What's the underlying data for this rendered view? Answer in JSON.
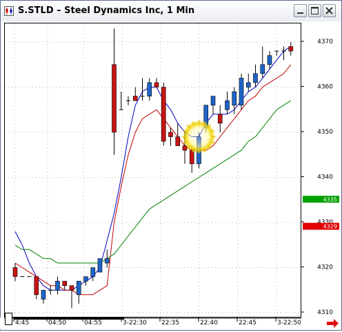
{
  "window": {
    "title": "S.STLD – Steel Dynamics Inc, 1 Min",
    "app_icon": "candlestick-app-icon",
    "controls": [
      "minimize-icon",
      "maximize-icon",
      "close-icon"
    ]
  },
  "chart_data": {
    "type": "candlestick",
    "title": "",
    "xlabel": "",
    "ylabel": "",
    "ylim": [
      4308,
      4373
    ],
    "y_ticks": [
      "4370",
      "4360",
      "4350",
      "4340",
      "4330",
      "4320",
      "4310"
    ],
    "x_ticks": [
      "4:45",
      "04:50",
      "04:55",
      "3-22:30",
      "22:35",
      "22:40",
      "22:45",
      "3-22:50"
    ],
    "price_tags": [
      {
        "label": "4335",
        "value": 4335,
        "color": "#00a000"
      },
      {
        "label": "4329",
        "value": 4329,
        "color": "#e00000"
      }
    ],
    "candles": [
      {
        "o": 4320,
        "h": 4321,
        "l": 4317,
        "c": 4318
      },
      {
        "o": 4318,
        "h": 4318,
        "l": 4318,
        "c": 4318
      },
      {
        "o": 4318,
        "h": 4318,
        "l": 4318,
        "c": 4318
      },
      {
        "o": 4318,
        "h": 4318,
        "l": 4313,
        "c": 4314
      },
      {
        "o": 4313,
        "h": 4315,
        "l": 4312,
        "c": 4315
      },
      {
        "o": 4315,
        "h": 4316,
        "l": 4314,
        "c": 4315
      },
      {
        "o": 4315,
        "h": 4318,
        "l": 4314,
        "c": 4317
      },
      {
        "o": 4317,
        "h": 4317,
        "l": 4315,
        "c": 4316
      },
      {
        "o": 4316,
        "h": 4316,
        "l": 4311,
        "c": 4315
      },
      {
        "o": 4314,
        "h": 4317,
        "l": 4312,
        "c": 4317
      },
      {
        "o": 4317,
        "h": 4318,
        "l": 4316,
        "c": 4318
      },
      {
        "o": 4318,
        "h": 4320,
        "l": 4317,
        "c": 4320
      },
      {
        "o": 4319,
        "h": 4322,
        "l": 4319,
        "c": 4322
      },
      {
        "o": 4321,
        "h": 4324,
        "l": 4320,
        "c": 4322
      },
      {
        "o": 4365,
        "h": 4373,
        "l": 4345,
        "c": 4350
      },
      {
        "o": 4355,
        "h": 4359,
        "l": 4355,
        "c": 4355
      },
      {
        "o": 4357,
        "h": 4358,
        "l": 4356,
        "c": 4357
      },
      {
        "o": 4358,
        "h": 4360,
        "l": 4357,
        "c": 4357
      },
      {
        "o": 4358,
        "h": 4362,
        "l": 4357,
        "c": 4358
      },
      {
        "o": 4358,
        "h": 4362,
        "l": 4357,
        "c": 4361
      },
      {
        "o": 4361,
        "h": 4362,
        "l": 4360,
        "c": 4360
      },
      {
        "o": 4360,
        "h": 4361,
        "l": 4347,
        "c": 4348
      },
      {
        "o": 4350,
        "h": 4351,
        "l": 4347,
        "c": 4349
      },
      {
        "o": 4349,
        "h": 4352,
        "l": 4347,
        "c": 4347
      },
      {
        "o": 4347,
        "h": 4350,
        "l": 4343,
        "c": 4346
      },
      {
        "o": 4346,
        "h": 4347,
        "l": 4341,
        "c": 4343
      },
      {
        "o": 4343,
        "h": 4350,
        "l": 4342,
        "c": 4349
      },
      {
        "o": 4351,
        "h": 4356,
        "l": 4350,
        "c": 4356
      },
      {
        "o": 4356,
        "h": 4358,
        "l": 4354,
        "c": 4358
      },
      {
        "o": 4354,
        "h": 4356,
        "l": 4350,
        "c": 4352
      },
      {
        "o": 4355,
        "h": 4359,
        "l": 4354,
        "c": 4357
      },
      {
        "o": 4356,
        "h": 4360,
        "l": 4354,
        "c": 4359
      },
      {
        "o": 4356,
        "h": 4363,
        "l": 4355,
        "c": 4362
      },
      {
        "o": 4360,
        "h": 4363,
        "l": 4359,
        "c": 4361
      },
      {
        "o": 4361,
        "h": 4365,
        "l": 4360,
        "c": 4363
      },
      {
        "o": 4363,
        "h": 4369,
        "l": 4362,
        "c": 4365
      },
      {
        "o": 4365,
        "h": 4368,
        "l": 4364,
        "c": 4367
      },
      {
        "o": 4368,
        "h": 4368,
        "l": 4367,
        "c": 4368
      },
      {
        "o": 4368,
        "h": 4369,
        "l": 4366,
        "c": 4368
      },
      {
        "o": 4369,
        "h": 4370,
        "l": 4367,
        "c": 4368
      }
    ],
    "series": [
      {
        "color": "#0000c0",
        "values": [
          4328,
          4325,
          4321,
          4318,
          4316,
          4315,
          4315,
          4315,
          4315,
          4316,
          4317,
          4318,
          4320,
          4326,
          4332,
          4340,
          4349,
          4356,
          4359,
          4360,
          4360,
          4357,
          4355,
          4352,
          4350,
          4349,
          4349,
          4352,
          4354,
          4354,
          4354,
          4355,
          4357,
          4359,
          4360,
          4362,
          4364,
          4366,
          4368,
          4369
        ]
      },
      {
        "color": "#c00000",
        "values": [
          4321,
          4320,
          4319,
          4318,
          4317,
          4316,
          4316,
          4315,
          4315,
          4314,
          4314,
          4314,
          4315,
          4316,
          4330,
          4338,
          4345,
          4350,
          4353,
          4354,
          4355,
          4353,
          4351,
          4349,
          4347,
          4346,
          4346,
          4346,
          4347,
          4349,
          4351,
          4353,
          4355,
          4357,
          4358,
          4360,
          4361,
          4362,
          4363,
          4365
        ]
      },
      {
        "color": "#008000",
        "values": [
          4325,
          4324,
          4324,
          4323,
          4322,
          4322,
          4321,
          4321,
          4321,
          4321,
          4321,
          4321,
          4321,
          4322,
          4323,
          4325,
          4327,
          4329,
          4331,
          4333,
          4334,
          4335,
          4336,
          4337,
          4338,
          4339,
          4340,
          4341,
          4342,
          4343,
          4344,
          4345,
          4346,
          4348,
          4349,
          4351,
          4353,
          4355,
          4356,
          4357
        ]
      }
    ],
    "grid": true
  }
}
